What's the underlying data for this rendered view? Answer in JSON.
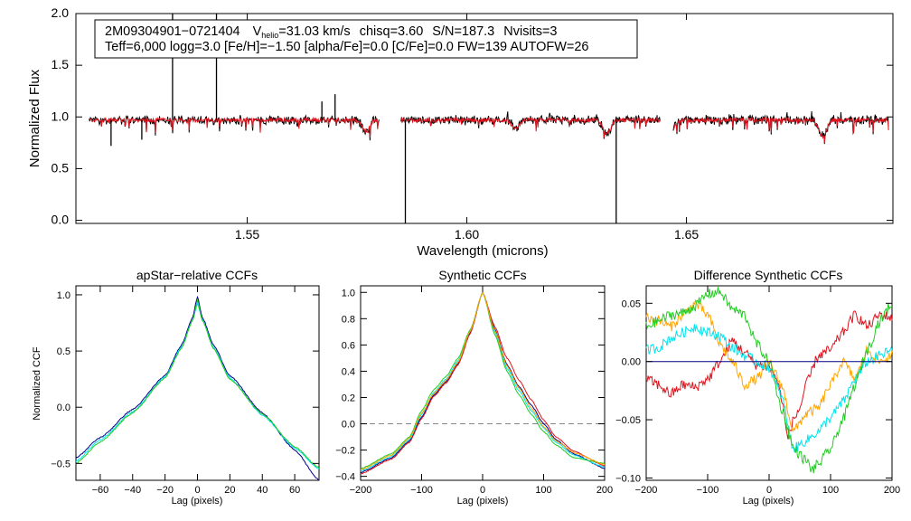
{
  "chart_data": [
    {
      "id": "spectrum",
      "type": "line",
      "xlabel": "Wavelength (microns)",
      "ylabel": "Normalized Flux",
      "xlim": [
        1.511,
        1.697
      ],
      "ylim": [
        -0.03,
        2.0
      ],
      "xticks": [
        1.55,
        1.6,
        1.65
      ],
      "xtick_labels": [
        "1.55",
        "1.60",
        "1.65"
      ],
      "yticks": [
        0.0,
        0.5,
        1.0,
        1.5,
        2.0
      ],
      "ytick_labels": [
        "0.0",
        "0.5",
        "1.0",
        "1.5",
        "2.0"
      ],
      "annotation": {
        "object": "2M09304901−0721404",
        "vhelio_prefix": "V",
        "vhelio_sub": "helio",
        "vhelio_value": "=31.03 km/s",
        "chisq": "chisq=3.60",
        "snr": "S/N=187.3",
        "nvisits": "Nvisits=3",
        "params_line": "Teff=6,000 logg=3.0 [Fe/H]=−1.50 [alpha/Fe]=0.0 [C/Fe]=0.0 FW=139 AUTOFW=26"
      },
      "chips": [
        [
          1.514,
          1.58
        ],
        [
          1.585,
          1.644
        ],
        [
          1.647,
          1.696
        ]
      ],
      "series": [
        {
          "name": "observed",
          "color": "#000000",
          "continuum": 0.97,
          "spikes_up": [
            [
              1.533,
              2.0
            ],
            [
              1.543,
              2.0
            ],
            [
              1.57,
              1.22
            ],
            [
              1.567,
              1.15
            ]
          ],
          "spikes_down": [
            [
              1.586,
              -0.03
            ],
            [
              1.634,
              -0.03
            ],
            [
              1.519,
              0.72
            ],
            [
              1.526,
              0.78
            ]
          ]
        },
        {
          "name": "model",
          "color": "#e0141e",
          "continuum": 0.97,
          "absorption_lines": [
            [
              1.611,
              0.88
            ],
            [
              1.632,
              0.84
            ],
            [
              1.681,
              0.81
            ],
            [
              1.647,
              0.9
            ],
            [
              1.577,
              0.86
            ]
          ]
        }
      ]
    },
    {
      "id": "apstar-ccf",
      "type": "line",
      "title": "apStar−relative CCFs",
      "xlabel": "Lag (pixels)",
      "ylabel": "Normalized CCF",
      "xlim": [
        -75,
        75
      ],
      "ylim": [
        -0.65,
        1.08
      ],
      "xticks": [
        -60,
        -40,
        -20,
        0,
        20,
        40,
        60
      ],
      "xtick_labels": [
        "−60",
        "−40",
        "−20",
        "0",
        "20",
        "40",
        "60"
      ],
      "yticks": [
        -0.5,
        0.0,
        0.5,
        1.0
      ],
      "ytick_labels": [
        "−0.5",
        "0.0",
        "0.5",
        "1.0"
      ],
      "series": [
        {
          "name": "visit-1",
          "color": "#00008b",
          "x": [
            -75,
            -60,
            -40,
            -20,
            -10,
            -3,
            0,
            3,
            10,
            20,
            40,
            60,
            75
          ],
          "y": [
            -0.45,
            -0.27,
            -0.02,
            0.28,
            0.55,
            0.8,
            0.98,
            0.8,
            0.55,
            0.28,
            -0.05,
            -0.38,
            -0.65
          ]
        },
        {
          "name": "visit-2",
          "color": "#00e5ee",
          "x": [
            -75,
            -60,
            -40,
            -20,
            -10,
            -3,
            0,
            3,
            10,
            20,
            40,
            60,
            75
          ],
          "y": [
            -0.48,
            -0.29,
            -0.04,
            0.27,
            0.53,
            0.78,
            0.92,
            0.78,
            0.53,
            0.26,
            -0.07,
            -0.36,
            -0.55
          ]
        },
        {
          "name": "visit-3",
          "color": "#22cc22",
          "x": [
            -75,
            -60,
            -40,
            -20,
            -10,
            -3,
            0,
            3,
            10,
            20,
            40,
            60,
            75
          ],
          "y": [
            -0.5,
            -0.31,
            -0.05,
            0.26,
            0.52,
            0.77,
            0.95,
            0.77,
            0.52,
            0.25,
            -0.06,
            -0.35,
            -0.54
          ]
        }
      ]
    },
    {
      "id": "synthetic-ccf",
      "type": "line",
      "title": "Synthetic CCFs",
      "xlabel": "Lag (pixels)",
      "ylabel": "",
      "xlim": [
        -200,
        200
      ],
      "ylim": [
        -0.43,
        1.05
      ],
      "xticks": [
        -200,
        -100,
        0,
        100,
        200
      ],
      "xtick_labels": [
        "−200",
        "−100",
        "0",
        "100",
        "200"
      ],
      "yticks": [
        -0.4,
        -0.2,
        0.0,
        0.2,
        0.4,
        0.6,
        0.8,
        1.0
      ],
      "ytick_labels": [
        "−0.4",
        "−0.2",
        "0.0",
        "0.2",
        "0.4",
        "0.6",
        "0.8",
        "1.0"
      ],
      "zero_line": 0.0,
      "series": [
        {
          "name": "visit-1",
          "color": "#00008b",
          "x": [
            -200,
            -150,
            -120,
            -100,
            -80,
            -60,
            -40,
            -20,
            0,
            20,
            40,
            60,
            80,
            100,
            120,
            150,
            200
          ],
          "y": [
            -0.37,
            -0.26,
            -0.13,
            0.05,
            0.22,
            0.32,
            0.46,
            0.7,
            1.0,
            0.72,
            0.45,
            0.28,
            0.14,
            0.0,
            -0.12,
            -0.23,
            -0.34
          ]
        },
        {
          "name": "visit-2",
          "color": "#e0141e",
          "x": [
            -200,
            -150,
            -120,
            -100,
            -80,
            -60,
            -40,
            -20,
            0,
            20,
            40,
            60,
            80,
            100,
            120,
            150,
            200
          ],
          "y": [
            -0.38,
            -0.27,
            -0.14,
            0.04,
            0.21,
            0.31,
            0.45,
            0.69,
            1.0,
            0.74,
            0.5,
            0.33,
            0.18,
            0.03,
            -0.1,
            -0.21,
            -0.32
          ]
        },
        {
          "name": "visit-3",
          "color": "#00e5ee",
          "x": [
            -200,
            -150,
            -120,
            -100,
            -80,
            -60,
            -40,
            -20,
            0,
            20,
            40,
            60,
            80,
            100,
            120,
            150,
            200
          ],
          "y": [
            -0.36,
            -0.25,
            -0.12,
            0.07,
            0.24,
            0.34,
            0.48,
            0.71,
            1.0,
            0.7,
            0.42,
            0.25,
            0.1,
            -0.03,
            -0.14,
            -0.24,
            -0.33
          ]
        },
        {
          "name": "visit-4",
          "color": "#22cc22",
          "x": [
            -200,
            -150,
            -120,
            -100,
            -80,
            -60,
            -40,
            -20,
            0,
            20,
            40,
            60,
            80,
            100,
            120,
            150,
            200
          ],
          "y": [
            -0.34,
            -0.23,
            -0.1,
            0.1,
            0.26,
            0.36,
            0.5,
            0.72,
            1.0,
            0.68,
            0.4,
            0.22,
            0.07,
            -0.06,
            -0.16,
            -0.26,
            -0.3
          ]
        },
        {
          "name": "orange",
          "color": "#ffa500",
          "x": [
            -200,
            -150,
            -120,
            -100,
            -80,
            -60,
            -40,
            -20,
            0,
            20,
            40,
            60,
            80,
            100,
            120,
            150,
            200
          ],
          "y": [
            -0.35,
            -0.24,
            -0.11,
            0.08,
            0.23,
            0.33,
            0.47,
            0.71,
            1.0,
            0.71,
            0.44,
            0.27,
            0.12,
            -0.02,
            -0.13,
            -0.22,
            -0.31
          ]
        }
      ]
    },
    {
      "id": "difference-ccf",
      "type": "line",
      "title": "Difference Synthetic CCFs",
      "xlabel": "Lag (pixels)",
      "ylabel": "",
      "xlim": [
        -200,
        200
      ],
      "ylim": [
        -0.102,
        0.065
      ],
      "xticks": [
        -200,
        -100,
        0,
        100,
        200
      ],
      "xtick_labels": [
        "−200",
        "−100",
        "0",
        "100",
        "200"
      ],
      "yticks": [
        -0.1,
        -0.05,
        0.0,
        0.05
      ],
      "ytick_labels": [
        "−0.10",
        "−0.05",
        "0.00",
        "0.05"
      ],
      "zero_line": 0.0,
      "series": [
        {
          "name": "red",
          "color": "#e0141e",
          "x": [
            -200,
            -180,
            -160,
            -140,
            -120,
            -100,
            -80,
            -60,
            -40,
            -20,
            0,
            10,
            20,
            30,
            40,
            50,
            60,
            80,
            100,
            120,
            140,
            160,
            180,
            200
          ],
          "y": [
            -0.015,
            -0.02,
            -0.028,
            -0.02,
            -0.022,
            -0.015,
            0.0,
            0.018,
            0.008,
            -0.003,
            -0.005,
            -0.012,
            -0.03,
            -0.065,
            -0.05,
            -0.04,
            -0.02,
            0.005,
            0.01,
            0.025,
            0.04,
            0.03,
            0.04,
            0.038
          ]
        },
        {
          "name": "orange",
          "color": "#ffa500",
          "x": [
            -200,
            -180,
            -160,
            -140,
            -120,
            -100,
            -80,
            -60,
            -40,
            -20,
            0,
            20,
            40,
            60,
            80,
            100,
            120,
            140,
            160,
            180,
            200
          ],
          "y": [
            0.038,
            0.035,
            0.03,
            0.04,
            0.05,
            0.04,
            0.015,
            0.0,
            -0.02,
            -0.015,
            0.0,
            -0.02,
            -0.06,
            -0.045,
            -0.04,
            -0.02,
            0.0,
            -0.015,
            0.01,
            0.0,
            0.005
          ]
        },
        {
          "name": "cyan",
          "color": "#00e5ee",
          "x": [
            -200,
            -180,
            -160,
            -140,
            -120,
            -100,
            -80,
            -60,
            -40,
            -20,
            0,
            20,
            40,
            60,
            80,
            100,
            120,
            140,
            160,
            180,
            200
          ],
          "y": [
            0.01,
            0.012,
            0.02,
            0.025,
            0.03,
            0.025,
            0.022,
            0.012,
            0.005,
            0.0,
            -0.005,
            -0.03,
            -0.075,
            -0.068,
            -0.06,
            -0.048,
            -0.035,
            -0.015,
            0.0,
            0.005,
            0.01
          ]
        },
        {
          "name": "green",
          "color": "#22cc22",
          "x": [
            -200,
            -180,
            -160,
            -140,
            -120,
            -100,
            -80,
            -60,
            -40,
            -20,
            0,
            20,
            40,
            60,
            70,
            80,
            100,
            120,
            140,
            160,
            180,
            200
          ],
          "y": [
            0.03,
            0.035,
            0.04,
            0.042,
            0.048,
            0.058,
            0.06,
            0.045,
            0.04,
            0.015,
            0.0,
            -0.04,
            -0.075,
            -0.085,
            -0.093,
            -0.088,
            -0.075,
            -0.05,
            -0.02,
            0.01,
            0.035,
            0.05
          ]
        },
        {
          "name": "navy",
          "color": "#00008b",
          "x": [
            -200,
            200
          ],
          "y": [
            0.0,
            0.0
          ]
        }
      ]
    }
  ]
}
